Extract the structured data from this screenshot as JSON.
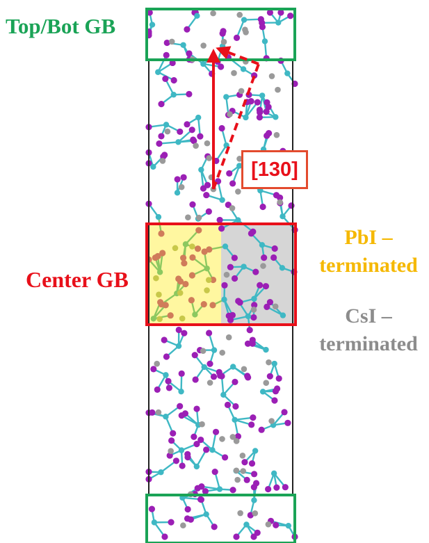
{
  "labels": {
    "top_bot_gb": "Top/Bot GB",
    "direction": "[130]",
    "center_gb": "Center GB",
    "pbi_line1": "PbI –",
    "pbi_line2": "terminated",
    "csi_line1": "CsI –",
    "csi_line2": "terminated"
  },
  "colors": {
    "top_bot_gb": "#1aa356",
    "center_gb": "#e8101a",
    "direction": "#e8101a",
    "pbi_region": "#fff7a0",
    "pbi_text": "#f5b800",
    "csi_region": "#d6d6d6",
    "csi_text": "#8c8c8c",
    "pb_atom": "#3fb8c4",
    "i_atom": "#9b1fb5",
    "cs_atom": "#9a9a9a",
    "i_atom_pbi_region": "#d07c5a",
    "pb_atom_pbi_region": "#8cc860"
  }
}
